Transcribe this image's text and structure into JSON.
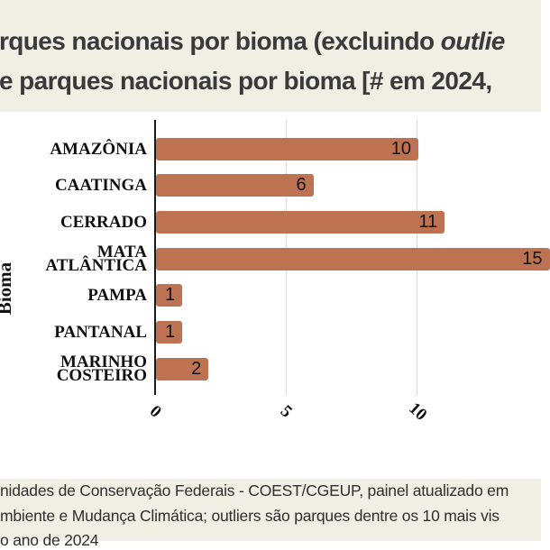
{
  "colors": {
    "page_bg": "#F1EEE3",
    "figure_bg": "#FFFFFF",
    "bar": "#BD7252",
    "axis": "#1A1A1A",
    "gridline": "#DADADA",
    "title_text": "#3A3A3A",
    "footer_text": "#2F2F2F"
  },
  "title": {
    "line1_prefix": "rques nacionais por bioma (excluindo ",
    "line1_italic": "outlie",
    "line2": "e parques nacionais por bioma [# em 2024,"
  },
  "chart_data": {
    "type": "bar",
    "orientation": "horizontal",
    "title_visible_lines": [
      "rques nacionais por bioma (excluindo outlie",
      "e parques nacionais por bioma [# em 2024,"
    ],
    "categories": [
      "AMAZÔNIA",
      "CAATINGA",
      "CERRADO",
      "MATA ATLÂNTICA",
      "PAMPA",
      "PANTANAL",
      "MARINHO COSTEIRO"
    ],
    "values": [
      10,
      6,
      11,
      15,
      1,
      1,
      2
    ],
    "category_display_lines": [
      [
        "AMAZÔNIA"
      ],
      [
        "CAATINGA"
      ],
      [
        "CERRADO"
      ],
      [
        "MATA",
        "ATLÂNTICA"
      ],
      [
        "PAMPA"
      ],
      [
        "PANTANAL"
      ],
      [
        "MARINHO",
        "COSTEIRO"
      ]
    ],
    "data_labels": [
      "10",
      "6",
      "11",
      "15",
      "1",
      "1",
      "2"
    ],
    "xlabel": "",
    "ylabel": "Bioma",
    "x_ticks": [
      "0",
      "5",
      "10"
    ],
    "x_tick_values": [
      0,
      5,
      10
    ],
    "xlim": [
      0,
      14.7
    ],
    "grid": "vertical-gridlines-at-5-and-10",
    "legend": "none",
    "bar_color": "#BD7252"
  },
  "footer": {
    "lines": [
      "nidades de Conservação Federais - COEST/CGEUP, painel atualizado em",
      "mbiente e Mudança Climática; outliers são parques dentre os 10 mais vis",
      "o ano de 2024"
    ]
  }
}
